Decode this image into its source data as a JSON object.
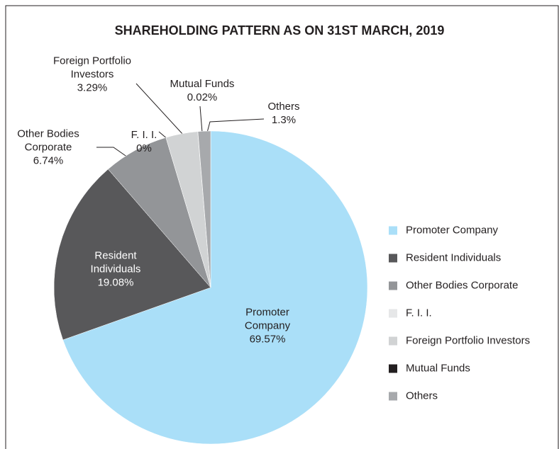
{
  "chart_data": {
    "type": "pie",
    "title": "SHAREHOLDING PATTERN AS ON 31ST MARCH, 2019",
    "categories": [
      "Promoter Company",
      "Resident Individuals",
      "Other Bodies Corporate",
      "F. I. I.",
      "Foreign Portfolio Investors",
      "Mutual Funds",
      "Others"
    ],
    "values": [
      69.57,
      19.08,
      6.74,
      0,
      3.29,
      0.02,
      1.3
    ],
    "value_labels": [
      "69.57%",
      "19.08%",
      "6.74%",
      "0%",
      "3.29%",
      "0.02%",
      "1.3%"
    ],
    "colors": [
      "#aadff8",
      "#58585a",
      "#939598",
      "#e6e7e8",
      "#d1d3d4",
      "#231f20",
      "#a7a9ac"
    ],
    "legend": "right"
  }
}
